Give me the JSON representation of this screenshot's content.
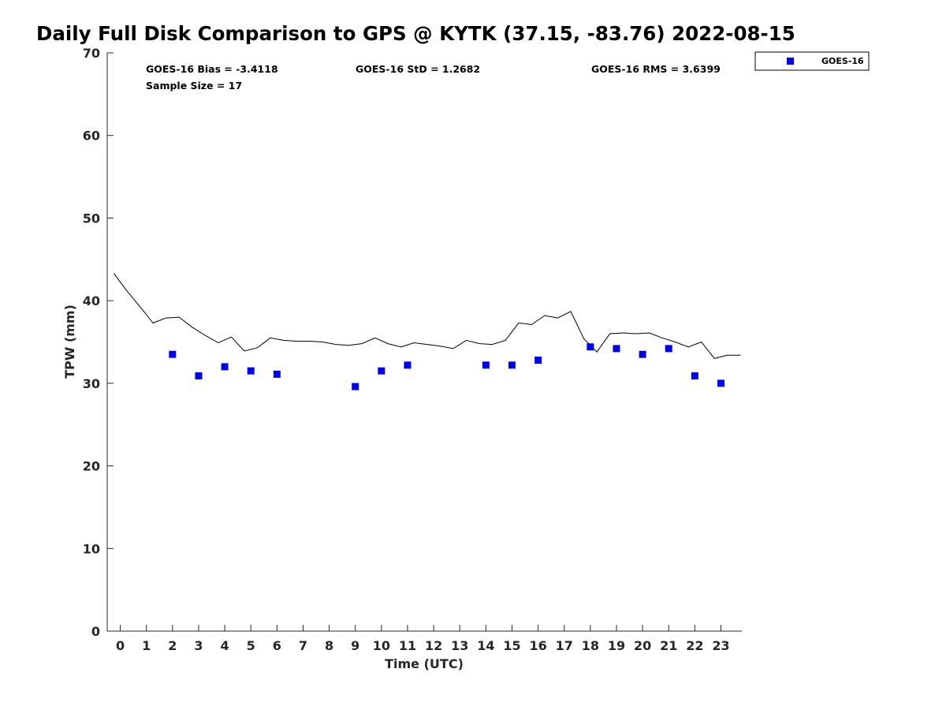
{
  "chart_data": {
    "type": "scatter",
    "title": "Daily Full Disk Comparison to GPS @ KYTK (37.15, -83.76) 2022-08-15",
    "xlabel": "Time (UTC)",
    "ylabel": "TPW (mm)",
    "xlim": [
      -0.5,
      23.8
    ],
    "ylim": [
      0,
      70
    ],
    "xticks": [
      0,
      1,
      2,
      3,
      4,
      5,
      6,
      7,
      8,
      9,
      10,
      11,
      12,
      13,
      14,
      15,
      16,
      17,
      18,
      19,
      20,
      21,
      22,
      23
    ],
    "yticks": [
      0,
      10,
      20,
      30,
      40,
      50,
      60,
      70
    ],
    "grid": false,
    "legend_position": "top-right, outside plot",
    "stats": {
      "bias": "GOES-16 Bias = -3.4118",
      "std": "GOES-16 StD = 1.2682",
      "rms": "GOES-16 RMS = 3.6399",
      "sample": "Sample Size = 17"
    },
    "series": [
      {
        "name": "GOES-16",
        "kind": "scatter",
        "marker": "square",
        "color": "#0000dd",
        "x": [
          2,
          3,
          4,
          5,
          6,
          9,
          10,
          11,
          14,
          15,
          16,
          18,
          19,
          20,
          21,
          22,
          23
        ],
        "y": [
          33.5,
          30.9,
          32.0,
          31.5,
          31.1,
          29.6,
          31.5,
          32.2,
          32.2,
          32.2,
          32.8,
          34.4,
          34.2,
          33.5,
          34.2,
          30.9,
          30.0
        ]
      },
      {
        "kind": "line",
        "color": "#000000",
        "x": [
          -0.25,
          0.25,
          0.75,
          1.25,
          1.75,
          2.25,
          2.75,
          3.25,
          3.75,
          4.25,
          4.75,
          5.25,
          5.75,
          6.25,
          6.75,
          7.25,
          7.75,
          8.25,
          8.75,
          9.25,
          9.75,
          10.25,
          10.75,
          11.25,
          11.75,
          12.25,
          12.75,
          13.25,
          13.75,
          14.25,
          14.75,
          15.25,
          15.75,
          16.25,
          16.75,
          17.25,
          17.75,
          18.25,
          18.75,
          19.25,
          19.75,
          20.25,
          20.75,
          21.25,
          21.75,
          22.25,
          22.75,
          23.25,
          23.75
        ],
        "y": [
          43.3,
          41.2,
          39.3,
          37.3,
          37.9,
          38.0,
          36.8,
          35.8,
          34.9,
          35.6,
          33.9,
          34.3,
          35.5,
          35.2,
          35.1,
          35.1,
          35.0,
          34.7,
          34.6,
          34.8,
          35.5,
          34.8,
          34.4,
          34.9,
          34.7,
          34.5,
          34.2,
          35.2,
          34.8,
          34.7,
          35.2,
          37.3,
          37.1,
          38.2,
          37.9,
          38.7,
          35.4,
          33.8,
          36.0,
          36.1,
          36.0,
          36.1,
          35.5,
          35.0,
          34.4,
          35.0,
          33.0,
          33.4,
          33.4
        ]
      }
    ]
  }
}
